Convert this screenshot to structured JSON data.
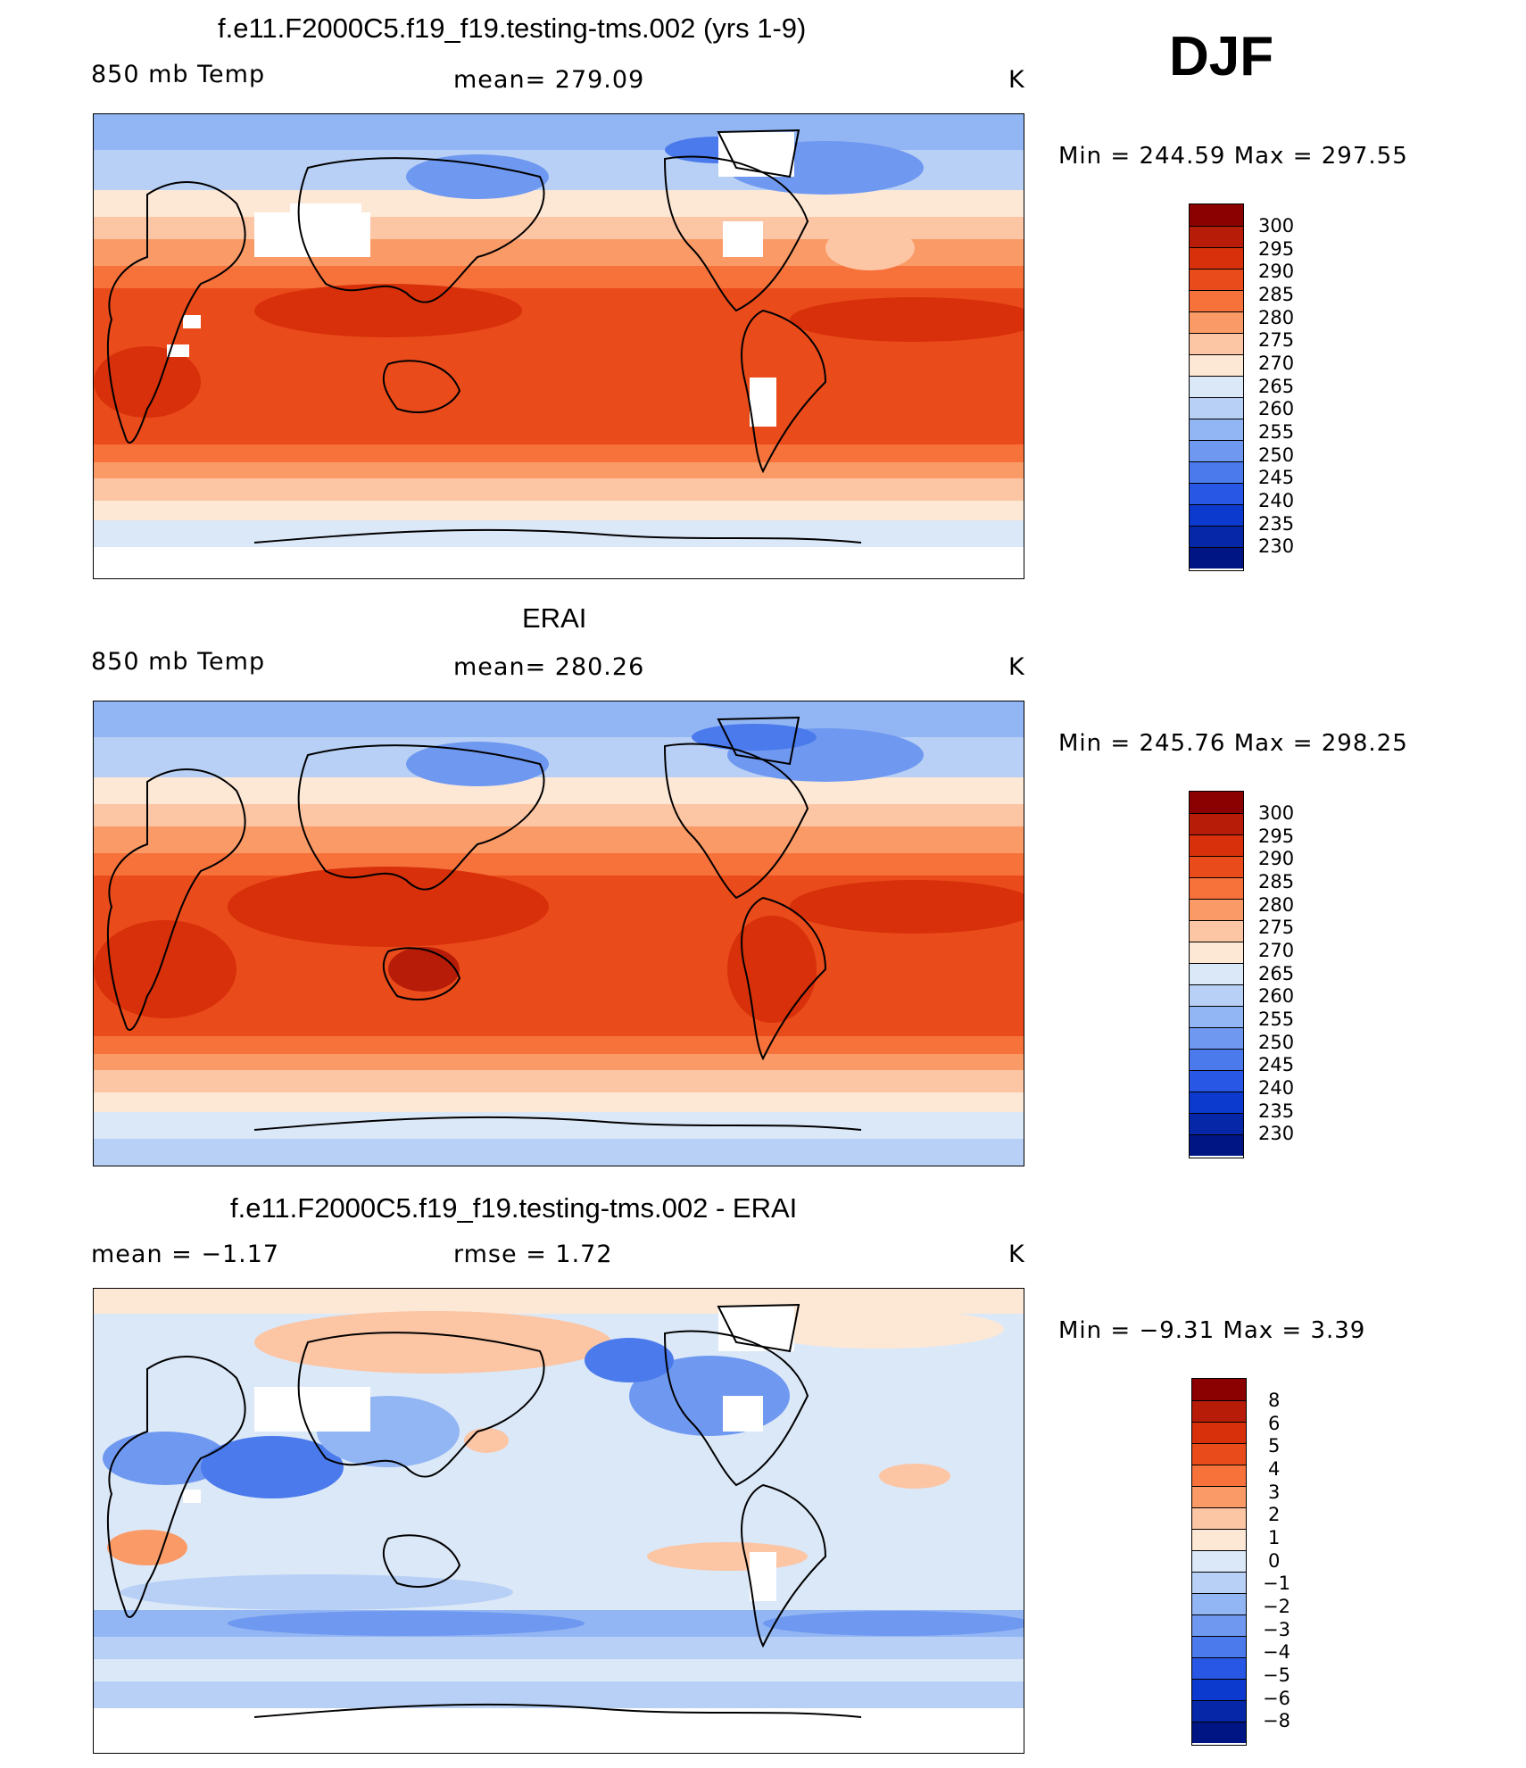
{
  "season": "DJF",
  "panels": [
    {
      "id": "model",
      "title": "f.e11.F2000C5.f19_f19.testing-tms.002 (yrs 1-9)",
      "left_label": "850 mb Temp",
      "center_label": "mean=  279.09",
      "units": "K",
      "minmax": "Min  =  244.59  Max  =  297.55",
      "colorbar": {
        "labels": [
          "300",
          "295",
          "290",
          "285",
          "280",
          "275",
          "270",
          "265",
          "260",
          "255",
          "250",
          "245",
          "240",
          "235",
          "230"
        ],
        "colors": [
          "#8b0000",
          "#b61c08",
          "#d7300a",
          "#ea4b1b",
          "#f7713a",
          "#fa9a66",
          "#fcc5a4",
          "#fde8d6",
          "#dbe8f8",
          "#b8d0f5",
          "#92b5f3",
          "#6f98f0",
          "#4a7aec",
          "#2757e4",
          "#0d3ace",
          "#0527a8",
          "#001584"
        ]
      }
    },
    {
      "id": "obs",
      "title": "ERAI",
      "left_label": "850 mb Temp",
      "center_label": "mean=  280.26",
      "units": "K",
      "minmax": "Min  =  245.76  Max  =  298.25",
      "colorbar": {
        "labels": [
          "300",
          "295",
          "290",
          "285",
          "280",
          "275",
          "270",
          "265",
          "260",
          "255",
          "250",
          "245",
          "240",
          "235",
          "230"
        ],
        "colors": [
          "#8b0000",
          "#b61c08",
          "#d7300a",
          "#ea4b1b",
          "#f7713a",
          "#fa9a66",
          "#fcc5a4",
          "#fde8d6",
          "#dbe8f8",
          "#b8d0f5",
          "#92b5f3",
          "#6f98f0",
          "#4a7aec",
          "#2757e4",
          "#0d3ace",
          "#0527a8",
          "#001584"
        ]
      }
    },
    {
      "id": "diff",
      "title": "f.e11.F2000C5.f19_f19.testing-tms.002 - ERAI",
      "left_label": "mean  =    −1.17",
      "center_label": "rmse  =     1.72",
      "units": "K",
      "minmax": "Min  =    −9.31  Max  =     3.39",
      "colorbar": {
        "labels": [
          "8",
          "6",
          "5",
          "4",
          "3",
          "2",
          "1",
          "0",
          "−1",
          "−2",
          "−3",
          "−4",
          "−5",
          "−6",
          "−8"
        ],
        "colors": [
          "#8b0000",
          "#b61c08",
          "#d7300a",
          "#ea4b1b",
          "#f7713a",
          "#fa9a66",
          "#fcc5a4",
          "#fde8d6",
          "#dbe8f8",
          "#b8d0f5",
          "#92b5f3",
          "#6f98f0",
          "#4a7aec",
          "#2757e4",
          "#0d3ace",
          "#0527a8",
          "#001584"
        ]
      }
    }
  ]
}
